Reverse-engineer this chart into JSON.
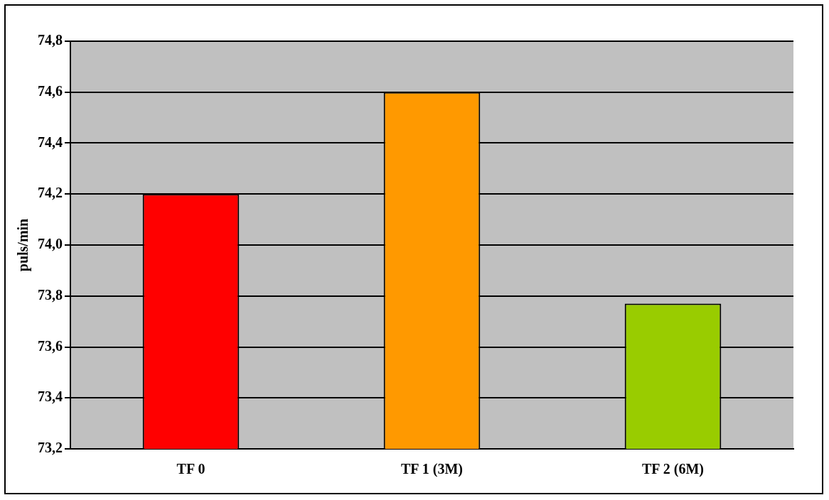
{
  "chart_data": {
    "type": "bar",
    "ylabel": "puls/min",
    "categories": [
      "TF 0",
      "TF 1 (3M)",
      "TF 2 (6M)"
    ],
    "values": [
      74.2,
      74.6,
      73.77
    ],
    "colors": [
      "#ff0000",
      "#ff9900",
      "#99cc00"
    ],
    "ylim": [
      73.2,
      74.8
    ],
    "yticks": [
      {
        "value": 73.2,
        "label": "73,2"
      },
      {
        "value": 73.4,
        "label": "73,4"
      },
      {
        "value": 73.6,
        "label": "73,6"
      },
      {
        "value": 73.8,
        "label": "73,8"
      },
      {
        "value": 74.0,
        "label": "74,0"
      },
      {
        "value": 74.2,
        "label": "74,2"
      },
      {
        "value": 74.4,
        "label": "74,4"
      },
      {
        "value": 74.6,
        "label": "74,6"
      },
      {
        "value": 74.8,
        "label": "74,8"
      }
    ],
    "grid": "y",
    "legend": false
  }
}
